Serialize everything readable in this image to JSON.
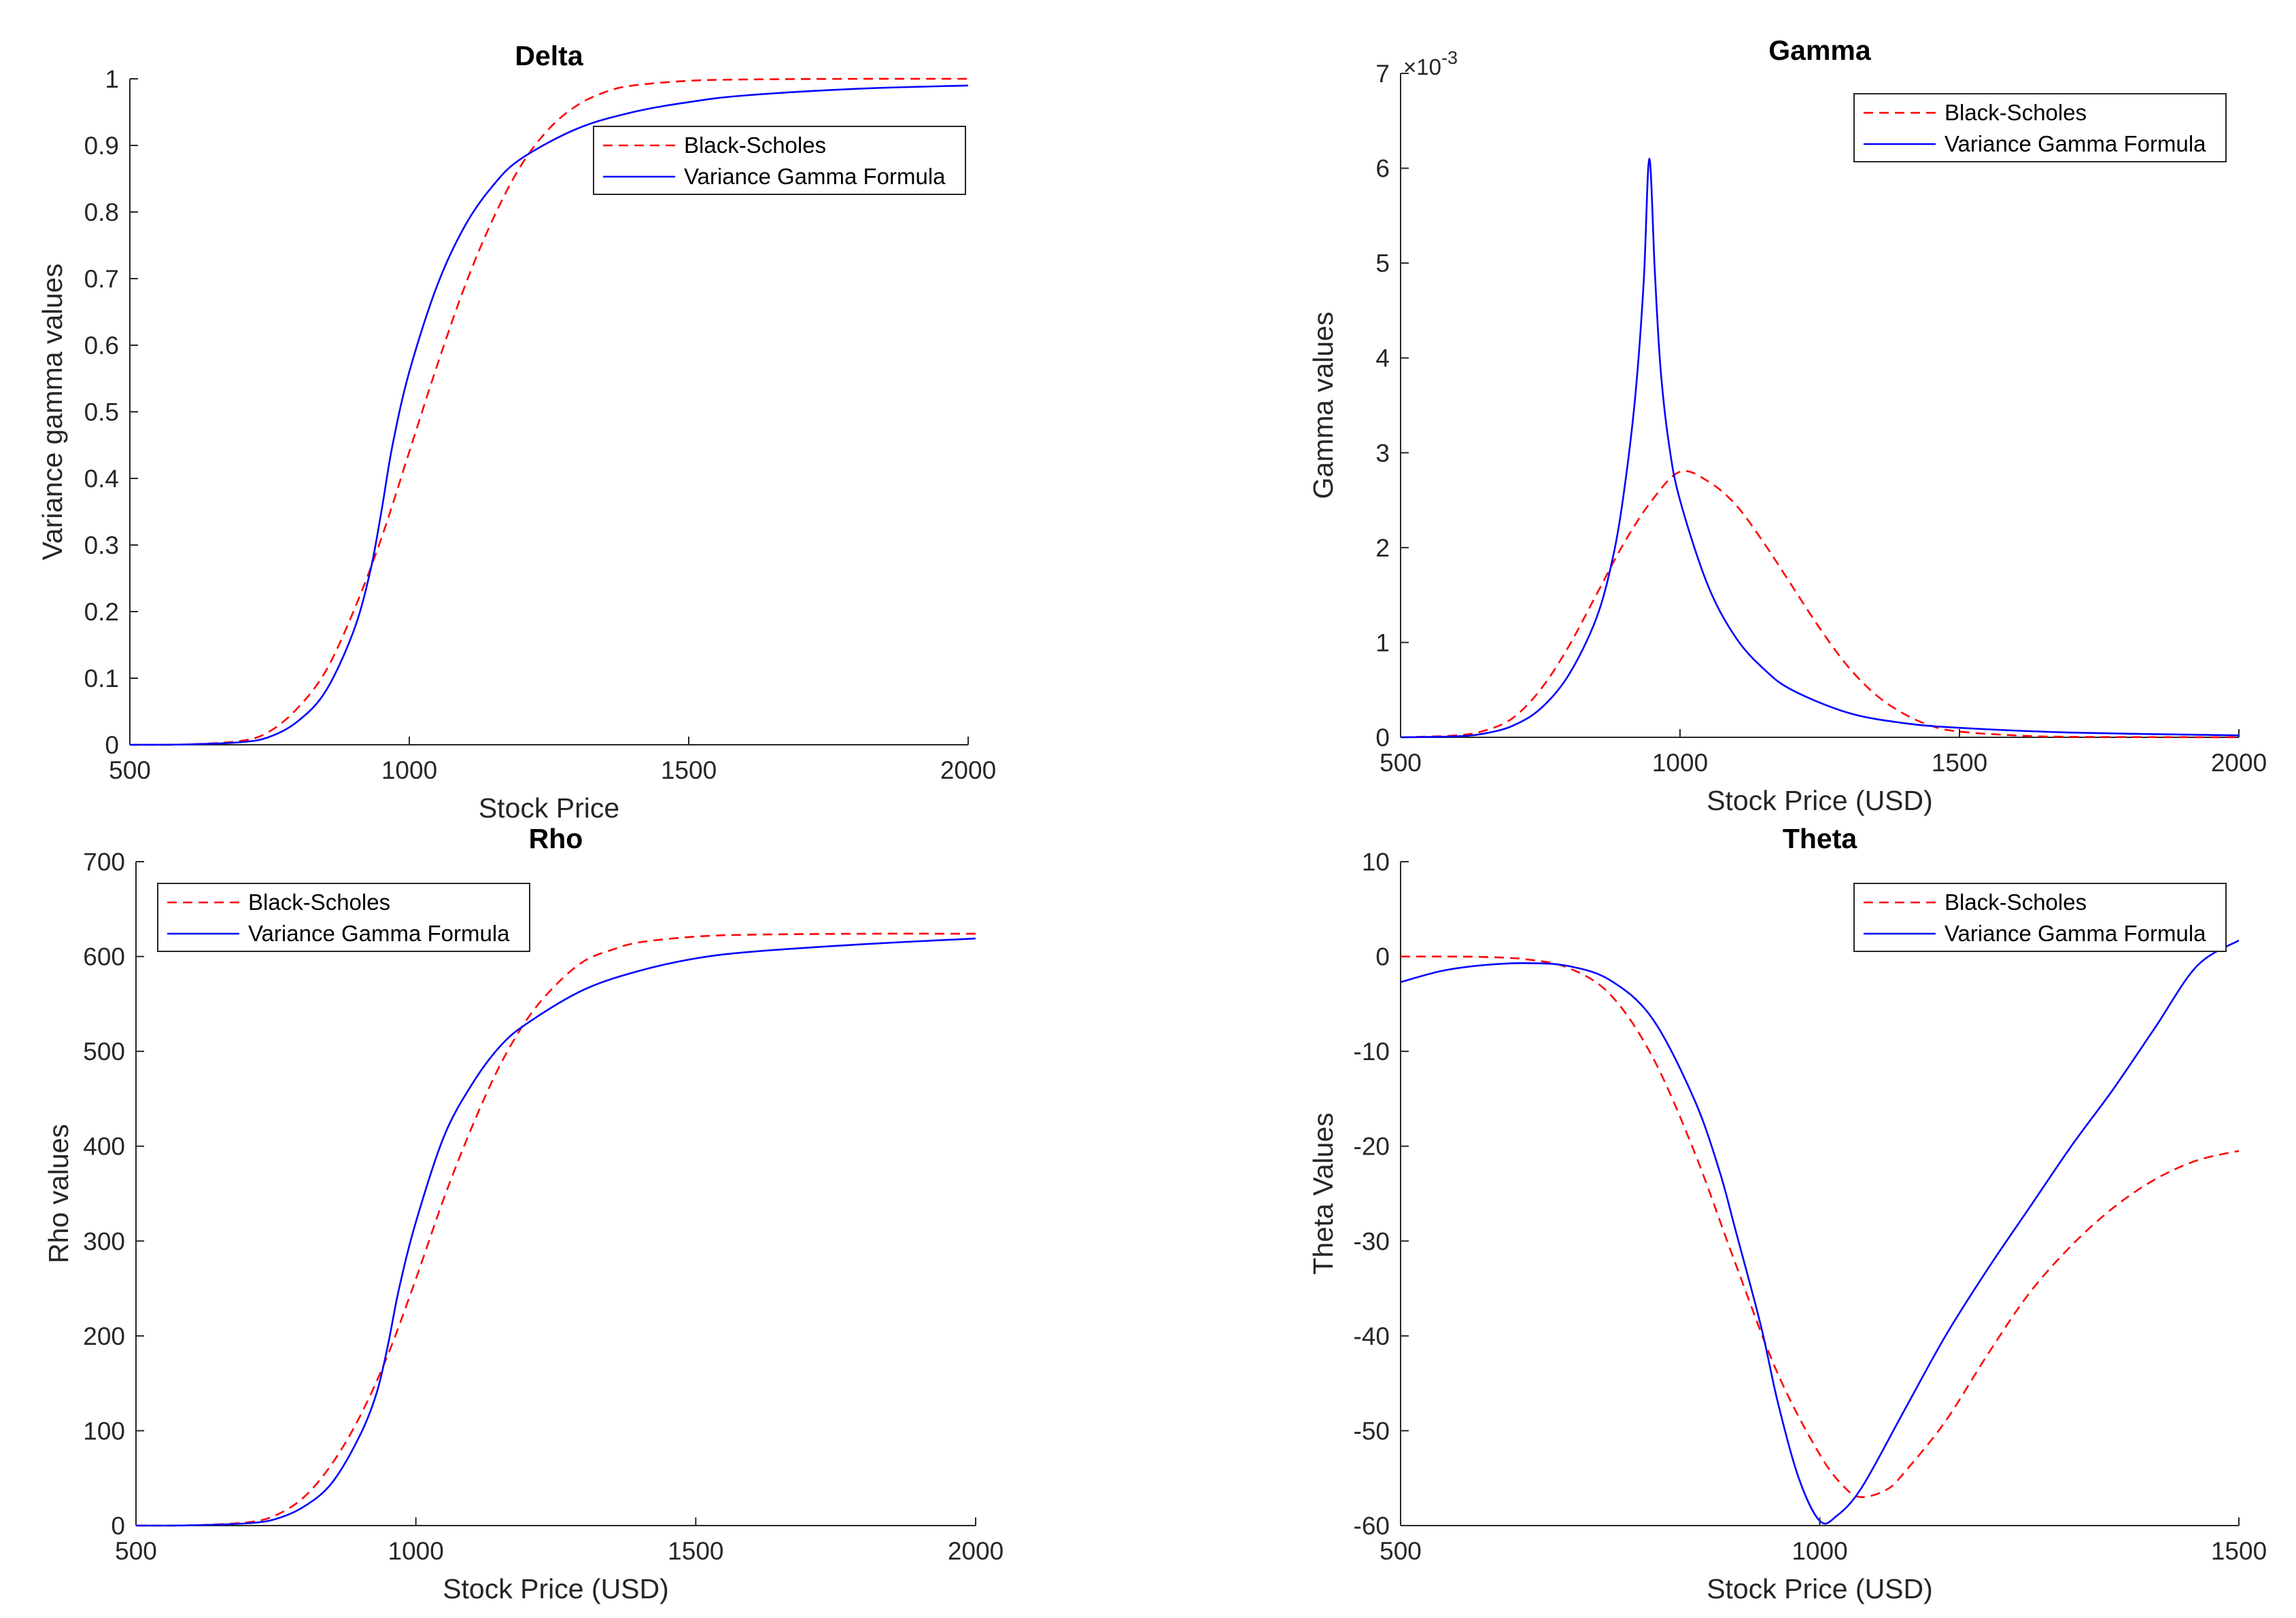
{
  "figure": {
    "background": "#ffffff",
    "series_colors": {
      "Black-Scholes": "#ff0000",
      "Variance Gamma Formula": "#0000ff"
    }
  },
  "chart_data": [
    {
      "id": "delta",
      "type": "line",
      "title": "Delta",
      "xlabel": "Stock Price",
      "ylabel": "Variance gamma values",
      "xlim": [
        500,
        2000
      ],
      "ylim": [
        0,
        1
      ],
      "xticks": [
        500,
        1000,
        1500,
        2000
      ],
      "yticks": [
        0,
        0.1,
        0.2,
        0.3,
        0.4,
        0.5,
        0.6,
        0.7,
        0.8,
        0.9,
        1
      ],
      "ytick_labels": [
        "0",
        "0.1",
        "0.2",
        "0.3",
        "0.4",
        "0.5",
        "0.6",
        "0.7",
        "0.8",
        "0.9",
        "1"
      ],
      "legend_position": "top-right",
      "series": [
        {
          "name": "Black-Scholes",
          "style": "dashed",
          "x": [
            500,
            600,
            700,
            750,
            800,
            850,
            900,
            950,
            1000,
            1050,
            1100,
            1150,
            1200,
            1250,
            1300,
            1350,
            1400,
            1500,
            1600,
            1800,
            2000
          ],
          "y": [
            0,
            0.0005,
            0.006,
            0.02,
            0.055,
            0.11,
            0.2,
            0.31,
            0.44,
            0.57,
            0.69,
            0.79,
            0.87,
            0.925,
            0.96,
            0.98,
            0.99,
            0.997,
            0.999,
            1,
            1
          ]
        },
        {
          "name": "Variance Gamma Formula",
          "style": "solid",
          "x": [
            500,
            600,
            700,
            750,
            800,
            850,
            900,
            930,
            950,
            970,
            1000,
            1050,
            1100,
            1150,
            1200,
            1300,
            1400,
            1500,
            1600,
            1800,
            2000
          ],
          "y": [
            0,
            0.0005,
            0.004,
            0.012,
            0.035,
            0.08,
            0.17,
            0.26,
            0.35,
            0.45,
            0.56,
            0.69,
            0.78,
            0.84,
            0.88,
            0.925,
            0.95,
            0.965,
            0.975,
            0.985,
            0.99
          ]
        }
      ]
    },
    {
      "id": "gamma",
      "type": "line",
      "title": "Gamma",
      "xlabel": "Stock Price (USD)",
      "ylabel": "Gamma values",
      "xlim": [
        500,
        2000
      ],
      "ylim": [
        0,
        7
      ],
      "y_multiplier_base": "×10",
      "y_multiplier_exp": "-3",
      "xticks": [
        500,
        1000,
        1500,
        2000
      ],
      "yticks": [
        0,
        1,
        2,
        3,
        4,
        5,
        6,
        7
      ],
      "ytick_labels": [
        "0",
        "1",
        "2",
        "3",
        "4",
        "5",
        "6",
        "7"
      ],
      "legend_position": "top-right",
      "series": [
        {
          "name": "Black-Scholes",
          "style": "dashed",
          "x": [
            500,
            600,
            650,
            700,
            750,
            800,
            850,
            900,
            950,
            1000,
            1050,
            1100,
            1150,
            1200,
            1250,
            1300,
            1350,
            1400,
            1450,
            1500,
            1600,
            1700,
            2000
          ],
          "y": [
            0,
            0.02,
            0.07,
            0.2,
            0.5,
            0.95,
            1.5,
            2.05,
            2.5,
            2.8,
            2.7,
            2.45,
            2.05,
            1.6,
            1.15,
            0.75,
            0.45,
            0.25,
            0.12,
            0.06,
            0.02,
            0.005,
            0
          ]
        },
        {
          "name": "Variance Gamma Formula",
          "style": "solid",
          "x": [
            500,
            600,
            650,
            700,
            750,
            800,
            850,
            880,
            900,
            920,
            935,
            945,
            955,
            965,
            980,
            1000,
            1050,
            1100,
            1150,
            1200,
            1300,
            1400,
            1500,
            1700,
            2000
          ],
          "y": [
            0,
            0.01,
            0.04,
            0.12,
            0.3,
            0.65,
            1.25,
            1.9,
            2.6,
            3.6,
            4.8,
            6.1,
            4.9,
            3.9,
            3.1,
            2.5,
            1.6,
            1.05,
            0.72,
            0.5,
            0.26,
            0.15,
            0.1,
            0.05,
            0.02
          ]
        }
      ]
    },
    {
      "id": "rho",
      "type": "line",
      "title": "Rho",
      "xlabel": "Stock Price (USD)",
      "ylabel": "Rho values",
      "xlim": [
        500,
        2000
      ],
      "ylim": [
        0,
        700
      ],
      "xticks": [
        500,
        1000,
        1500,
        2000
      ],
      "yticks": [
        0,
        100,
        200,
        300,
        400,
        500,
        600,
        700
      ],
      "ytick_labels": [
        "0",
        "100",
        "200",
        "300",
        "400",
        "500",
        "600",
        "700"
      ],
      "legend_position": "top-left",
      "series": [
        {
          "name": "Black-Scholes",
          "style": "dashed",
          "x": [
            500,
            600,
            700,
            750,
            800,
            850,
            900,
            950,
            1000,
            1050,
            1100,
            1150,
            1200,
            1250,
            1300,
            1350,
            1400,
            1500,
            1600,
            1800,
            2000
          ],
          "y": [
            0,
            0.3,
            3.5,
            11,
            30,
            65,
            115,
            180,
            260,
            345,
            420,
            485,
            535,
            570,
            595,
            607,
            615,
            621,
            623,
            624,
            624
          ]
        },
        {
          "name": "Variance Gamma Formula",
          "style": "solid",
          "x": [
            500,
            600,
            700,
            750,
            800,
            850,
            900,
            930,
            950,
            970,
            1000,
            1050,
            1100,
            1150,
            1200,
            1300,
            1400,
            1500,
            1600,
            1800,
            2000
          ],
          "y": [
            0,
            0.3,
            2.5,
            7,
            20,
            45,
            95,
            140,
            190,
            250,
            320,
            410,
            465,
            505,
            530,
            565,
            585,
            598,
            605,
            613,
            619
          ]
        }
      ]
    },
    {
      "id": "theta",
      "type": "line",
      "title": "Theta",
      "xlabel": "Stock Price (USD)",
      "ylabel": "Theta Values",
      "xlim": [
        500,
        1500
      ],
      "ylim": [
        -60,
        10
      ],
      "xticks": [
        500,
        1000,
        1500
      ],
      "yticks": [
        -60,
        -50,
        -40,
        -30,
        -20,
        -10,
        0,
        10
      ],
      "ytick_labels": [
        "-60",
        "-50",
        "-40",
        "-30",
        "-20",
        "-10",
        "0",
        "10"
      ],
      "legend_position": "top-right",
      "series": [
        {
          "name": "Black-Scholes",
          "style": "dashed",
          "x": [
            500,
            550,
            600,
            650,
            700,
            750,
            800,
            850,
            900,
            950,
            1000,
            1030,
            1050,
            1080,
            1100,
            1150,
            1200,
            1250,
            1300,
            1350,
            1400,
            1450,
            1500
          ],
          "y": [
            0,
            0,
            -0.05,
            -0.3,
            -1.2,
            -4,
            -10.5,
            -20.5,
            -32.5,
            -44,
            -52.5,
            -56,
            -57,
            -56.2,
            -54.5,
            -49,
            -42,
            -35.5,
            -30.5,
            -26.5,
            -23.5,
            -21.5,
            -20.5
          ]
        },
        {
          "name": "Variance Gamma Formula",
          "style": "solid",
          "x": [
            500,
            550,
            600,
            650,
            700,
            750,
            800,
            850,
            880,
            900,
            930,
            950,
            975,
            1000,
            1020,
            1050,
            1100,
            1150,
            1200,
            1250,
            1300,
            1350,
            1400,
            1450,
            1500
          ],
          "y": [
            -2.7,
            -1.5,
            -0.9,
            -0.7,
            -1.0,
            -2.5,
            -6.5,
            -15,
            -22.5,
            -29,
            -39,
            -47,
            -55,
            -59.5,
            -59,
            -56,
            -48,
            -40,
            -33,
            -26.5,
            -20,
            -14,
            -7.5,
            -1,
            1.7
          ]
        }
      ]
    }
  ]
}
